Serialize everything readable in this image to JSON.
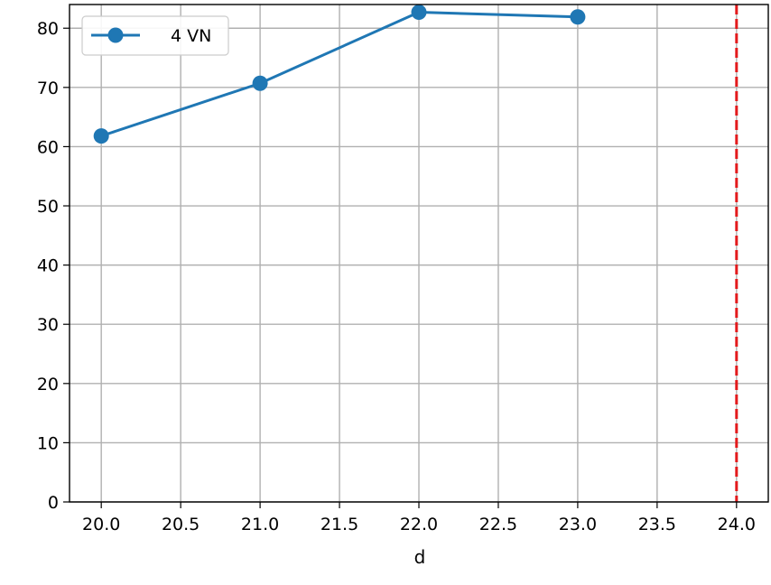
{
  "chart_data": {
    "type": "line",
    "title": "",
    "xlabel": "d",
    "ylabel": "",
    "xlim": [
      19.8,
      24.2
    ],
    "ylim": [
      0,
      84
    ],
    "x_ticks": [
      20.0,
      20.5,
      21.0,
      21.5,
      22.0,
      22.5,
      23.0,
      23.5,
      24.0
    ],
    "x_tick_labels": [
      "20.0",
      "20.5",
      "21.0",
      "21.5",
      "22.0",
      "22.5",
      "23.0",
      "23.5",
      "24.0"
    ],
    "y_ticks": [
      0,
      10,
      20,
      30,
      40,
      50,
      60,
      70,
      80
    ],
    "y_tick_labels": [
      "0",
      "10",
      "20",
      "30",
      "40",
      "50",
      "60",
      "70",
      "80"
    ],
    "grid": true,
    "legend_position": "top-left",
    "series": [
      {
        "name": "4 VN",
        "x": [
          20.0,
          21.0,
          22.0,
          23.0
        ],
        "y": [
          61.8,
          70.7,
          82.7,
          81.9
        ],
        "color": "#1f77b4",
        "marker": "circle"
      }
    ],
    "reference_lines": [
      {
        "orientation": "vertical",
        "x": 24.0,
        "color": "#e31a1c",
        "style": "dashed"
      }
    ]
  }
}
